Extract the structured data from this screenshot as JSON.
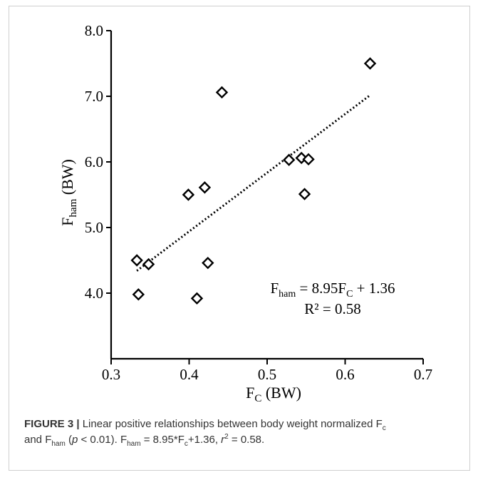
{
  "chart_data": {
    "type": "scatter",
    "xlabel": "F",
    "xlabel_sub": "C",
    "xlabel_unit": "(BW)",
    "ylabel": "F",
    "ylabel_sub": "ham",
    "ylabel_unit": "(BW)",
    "xlim": [
      0.3,
      0.7
    ],
    "ylim": [
      3.0,
      8.0
    ],
    "x_ticks": [
      "0.3",
      "0.4",
      "0.5",
      "0.6",
      "0.7"
    ],
    "y_ticks": [
      "4.0",
      "5.0",
      "6.0",
      "7.0",
      "8.0"
    ],
    "x_tick_values": [
      0.3,
      0.4,
      0.5,
      0.6,
      0.7
    ],
    "y_tick_values": [
      4.0,
      5.0,
      6.0,
      7.0,
      8.0
    ],
    "marker": "diamond-open",
    "points": [
      {
        "x": 0.333,
        "y": 4.5
      },
      {
        "x": 0.335,
        "y": 3.98
      },
      {
        "x": 0.348,
        "y": 4.44
      },
      {
        "x": 0.399,
        "y": 5.5
      },
      {
        "x": 0.41,
        "y": 3.92
      },
      {
        "x": 0.42,
        "y": 5.61
      },
      {
        "x": 0.424,
        "y": 4.46
      },
      {
        "x": 0.442,
        "y": 7.06
      },
      {
        "x": 0.528,
        "y": 6.03
      },
      {
        "x": 0.544,
        "y": 6.06
      },
      {
        "x": 0.548,
        "y": 5.51
      },
      {
        "x": 0.553,
        "y": 6.04
      },
      {
        "x": 0.632,
        "y": 7.5
      }
    ],
    "trendline": {
      "slope": 8.95,
      "intercept": 1.36,
      "x_range": [
        0.333,
        0.632
      ],
      "style": "dotted"
    },
    "annotation": {
      "eq_lhs": "F",
      "eq_lhs_sub": "ham",
      "eq_mid": " = 8.95F",
      "eq_mid_sub": "C",
      "eq_rhs": " + 1.36",
      "r2": "R² = 0.58"
    },
    "grid": false,
    "legend": "none",
    "colors": {
      "marker": "#000000",
      "axis": "#000000",
      "text": "#000000"
    }
  },
  "caption": {
    "label": "FIGURE 3 |",
    "l1_a": " Linear positive relationships between body weight normalized F",
    "l1_sub": "c",
    "l2_a": "and F",
    "l2_sub1": "ham",
    "l2_b": " (",
    "l2_p": "p",
    "l2_c": " < 0.01). F",
    "l2_sub2": "ham",
    "l2_d": " = 8.95*F",
    "l2_sub3": "c",
    "l2_e": "+1.36, ",
    "l2_r": "r",
    "l2_sup": "2",
    "l2_f": " = 0.58."
  }
}
